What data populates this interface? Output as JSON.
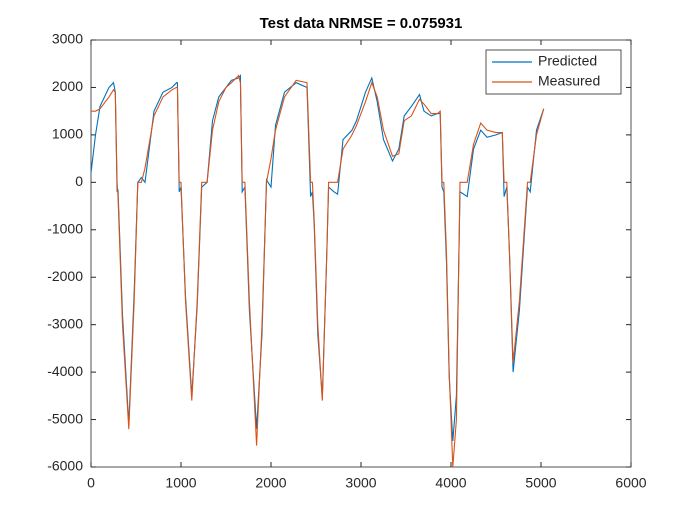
{
  "chart_data": {
    "type": "line",
    "title": "Test data NRMSE = 0.075931",
    "x": [
      0,
      50,
      100,
      200,
      250,
      270,
      290,
      300,
      350,
      420,
      480,
      520,
      560,
      600,
      700,
      800,
      900,
      950,
      960,
      980,
      1000,
      1050,
      1120,
      1180,
      1230,
      1290,
      1350,
      1420,
      1500,
      1560,
      1640,
      1660,
      1680,
      1710,
      1760,
      1840,
      1900,
      1950,
      2000,
      2050,
      2150,
      2280,
      2400,
      2440,
      2460,
      2480,
      2520,
      2570,
      2620,
      2640,
      2700,
      2740,
      2800,
      2900,
      2950,
      3050,
      3120,
      3180,
      3250,
      3350,
      3420,
      3480,
      3560,
      3650,
      3700,
      3780,
      3850,
      3880,
      3900,
      3920,
      3950,
      3980,
      4020,
      4060,
      4100,
      4180,
      4250,
      4330,
      4400,
      4500,
      4570,
      4590,
      4620,
      4650,
      4690,
      4760,
      4850,
      4880,
      4950,
      5030
    ],
    "series": [
      {
        "name": "Predicted",
        "color": "#0072BD",
        "values": [
          200,
          1000,
          1600,
          2000,
          2100,
          1900,
          -200,
          -150,
          -2800,
          -5100,
          -2300,
          0,
          100,
          0,
          1500,
          1900,
          2000,
          2100,
          2100,
          -200,
          -100,
          -2400,
          -4500,
          -2600,
          -100,
          0,
          1300,
          1800,
          2000,
          2150,
          2200,
          2250,
          -200,
          -100,
          -2700,
          -5200,
          -3200,
          50,
          -100,
          1200,
          1900,
          2100,
          2000,
          -300,
          -200,
          -900,
          -3200,
          -4550,
          -1500,
          -100,
          -200,
          -250,
          900,
          1100,
          1300,
          1900,
          2200,
          1700,
          900,
          450,
          700,
          1400,
          1600,
          1850,
          1500,
          1400,
          1450,
          1450,
          -100,
          -200,
          -1700,
          -4100,
          -5450,
          -4500,
          -200,
          -300,
          700,
          1100,
          950,
          1000,
          1050,
          -300,
          -100,
          -1500,
          -4000,
          -2700,
          -100,
          -200,
          1100,
          1550
        ]
      },
      {
        "name": "Measured",
        "color": "#D95319",
        "values": [
          1500,
          1500,
          1550,
          1800,
          1950,
          1900,
          0,
          -300,
          -3000,
          -5200,
          -2500,
          0,
          0,
          300,
          1400,
          1800,
          1950,
          2000,
          2000,
          0,
          0,
          -2500,
          -4600,
          -2500,
          0,
          0,
          1100,
          1700,
          2000,
          2100,
          2250,
          2100,
          0,
          0,
          -2500,
          -5550,
          -3000,
          0,
          500,
          1100,
          1800,
          2150,
          2100,
          0,
          0,
          -800,
          -3000,
          -4600,
          -1500,
          0,
          0,
          0,
          700,
          1000,
          1200,
          1700,
          2100,
          1800,
          1100,
          550,
          600,
          1300,
          1400,
          1750,
          1650,
          1450,
          1450,
          1500,
          0,
          0,
          -1500,
          -4000,
          -6000,
          -5000,
          0,
          0,
          800,
          1250,
          1100,
          1050,
          1050,
          0,
          0,
          -1500,
          -3800,
          -2500,
          0,
          0,
          1000,
          1550
        ]
      }
    ],
    "xlim": [
      0,
      6000
    ],
    "xticks": [
      0,
      1000,
      2000,
      3000,
      4000,
      5000,
      6000
    ],
    "ylim": [
      -6000,
      3000
    ],
    "yticks": [
      -6000,
      -5000,
      -4000,
      -3000,
      -2000,
      -1000,
      0,
      1000,
      2000,
      3000
    ],
    "grid": false,
    "legend": "top-right"
  }
}
